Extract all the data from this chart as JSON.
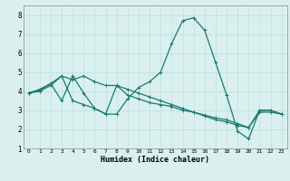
{
  "xlabel": "Humidex (Indice chaleur)",
  "xlim": [
    -0.5,
    23.5
  ],
  "ylim": [
    1,
    8.5
  ],
  "xticks": [
    0,
    1,
    2,
    3,
    4,
    5,
    6,
    7,
    8,
    9,
    10,
    11,
    12,
    13,
    14,
    15,
    16,
    17,
    18,
    19,
    20,
    21,
    22,
    23
  ],
  "yticks": [
    1,
    2,
    3,
    4,
    5,
    6,
    7,
    8
  ],
  "bg_color": "#d9f0ef",
  "grid_color": "#c0dede",
  "line_color": "#1a7a6e",
  "line1_x": [
    0,
    1,
    2,
    3,
    4,
    5,
    6,
    7,
    8,
    9,
    10,
    11,
    12,
    13,
    14,
    15,
    16,
    17,
    18,
    19,
    20,
    21,
    22,
    23
  ],
  "line1_y": [
    3.9,
    4.1,
    4.4,
    4.8,
    3.5,
    3.3,
    3.1,
    2.8,
    2.8,
    3.6,
    4.2,
    4.5,
    5.0,
    6.5,
    7.7,
    7.85,
    7.2,
    5.5,
    3.8,
    1.9,
    1.5,
    3.0,
    3.0,
    2.8
  ],
  "line2_x": [
    0,
    1,
    2,
    3,
    4,
    5,
    6,
    7,
    8,
    9,
    10,
    11,
    12,
    13,
    14,
    15,
    16,
    17,
    18,
    19,
    20,
    21,
    22,
    23
  ],
  "line2_y": [
    3.9,
    4.0,
    4.3,
    4.8,
    4.6,
    4.8,
    4.5,
    4.3,
    4.3,
    4.1,
    3.9,
    3.7,
    3.5,
    3.3,
    3.1,
    2.9,
    2.7,
    2.5,
    2.4,
    2.2,
    2.1,
    3.0,
    3.0,
    2.8
  ],
  "line3_x": [
    0,
    1,
    2,
    3,
    4,
    5,
    6,
    7,
    8,
    9,
    10,
    11,
    12,
    13,
    14,
    15,
    16,
    17,
    18,
    19,
    20,
    21,
    22,
    23
  ],
  "line3_y": [
    3.9,
    4.05,
    4.4,
    3.5,
    4.8,
    3.9,
    3.1,
    2.8,
    4.3,
    3.8,
    3.6,
    3.4,
    3.3,
    3.2,
    3.0,
    2.9,
    2.75,
    2.6,
    2.5,
    2.3,
    2.1,
    2.9,
    2.9,
    2.8
  ]
}
